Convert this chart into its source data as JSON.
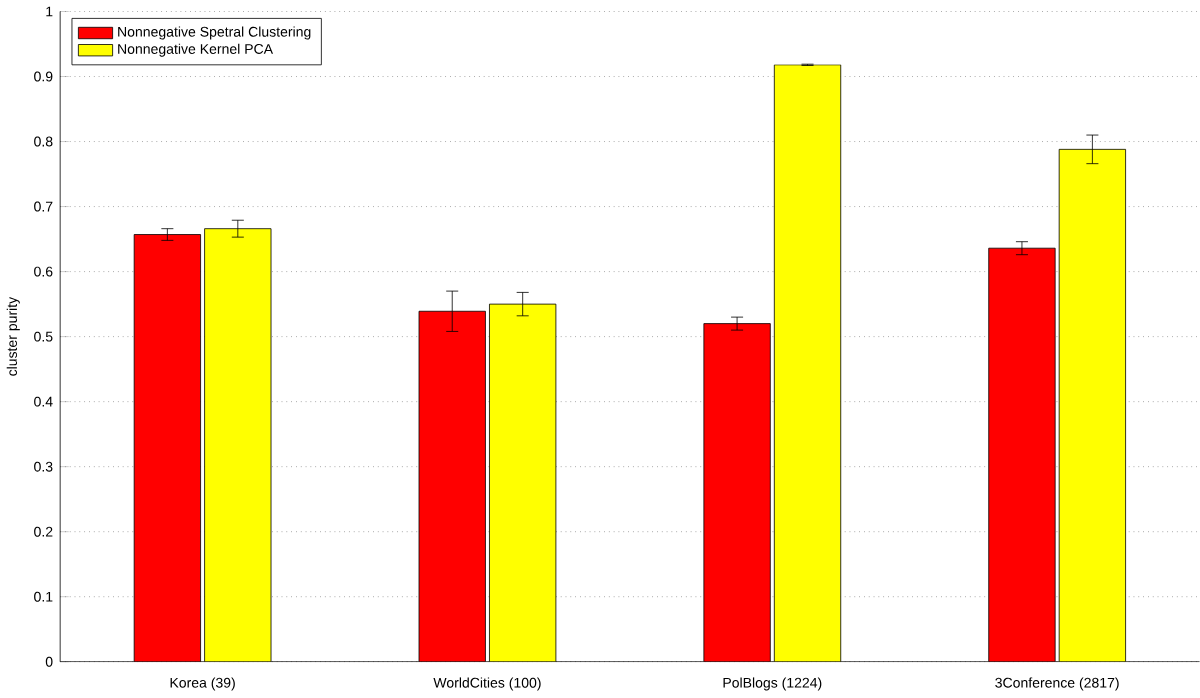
{
  "chart_data": {
    "type": "bar",
    "ylabel": "cluster purity",
    "categories": [
      "Korea (39)",
      "WorldCities (100)",
      "PolBlogs (1224)",
      "3Conference (2817)"
    ],
    "series": [
      {
        "name": "Nonnegative Spetral Clustering",
        "color": "#ff0000",
        "values": [
          0.657,
          0.539,
          0.52,
          0.636
        ],
        "errors": [
          0.009,
          0.031,
          0.01,
          0.01
        ]
      },
      {
        "name": "Nonnegative Kernel PCA",
        "color": "#ffff00",
        "values": [
          0.666,
          0.55,
          0.918,
          0.788
        ],
        "errors": [
          0.013,
          0.018,
          0.001,
          0.022
        ]
      }
    ],
    "ylim": [
      0,
      1
    ],
    "yticks": [
      0,
      0.1,
      0.2,
      0.3,
      0.4,
      0.5,
      0.6,
      0.7,
      0.8,
      0.9,
      1
    ],
    "grid": "y",
    "legend": "top left"
  }
}
